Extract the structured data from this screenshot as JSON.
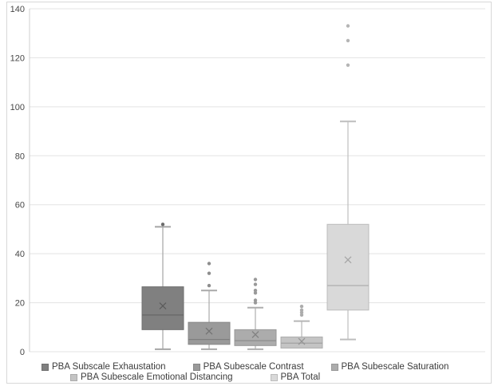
{
  "page": {
    "background": "#FFFFFF",
    "frame_border_color": "#D8D8D8",
    "gridline_color": "#E3E3E3",
    "axis_line_color": "#CFCFCF",
    "tick_label_color": "#474747",
    "legend_text_color": "#3C3C3C"
  },
  "chart_data": {
    "type": "boxplot",
    "title": "",
    "xlabel": "",
    "ylabel": "",
    "ylim": [
      0,
      140
    ],
    "yticks": [
      "0",
      "20",
      "40",
      "60",
      "80",
      "100",
      "120",
      "140"
    ],
    "grid": true,
    "legend_position": "bottom",
    "legend_rows": [
      [
        0,
        1,
        2
      ],
      [
        3,
        4
      ]
    ],
    "series": [
      {
        "name": "PBA Subscale Exhaustation",
        "min": 1,
        "q1": 9,
        "median": 15,
        "q3": 26.5,
        "max": 51,
        "mean": 18.7,
        "outliers": [
          52
        ],
        "fill": "#808080",
        "stroke": "#6F6F6F",
        "median_color": "#696969",
        "mean_color": "#5C5C5C",
        "whisker_color": "#A5A5A5",
        "outlier_color": "#6B6B6B"
      },
      {
        "name": "PBA Subescale Contrast",
        "min": 1,
        "q1": 3,
        "median": 5,
        "q3": 12,
        "max": 25,
        "mean": 8.4,
        "outliers": [
          27,
          32,
          36
        ],
        "fill": "#9A9A9A",
        "stroke": "#868686",
        "median_color": "#7E7E7E",
        "mean_color": "#737373",
        "whisker_color": "#A9A9A9",
        "outlier_color": "#8E8E8E"
      },
      {
        "name": "PBA Subescale Saturation",
        "min": 1,
        "q1": 2.5,
        "median": 4.5,
        "q3": 9,
        "max": 18,
        "mean": 7,
        "outliers": [
          20,
          21,
          24,
          25,
          27.5,
          29.5
        ],
        "fill": "#ACACAC",
        "stroke": "#979797",
        "median_color": "#8F8F8F",
        "mean_color": "#828282",
        "whisker_color": "#AEAEAE",
        "outlier_color": "#999999"
      },
      {
        "name": "PBA Subescale Emotional Distancing",
        "min": 1.5,
        "q1": 1.5,
        "median": 3.5,
        "q3": 6,
        "max": 12.5,
        "mean": 4.2,
        "outliers": [
          15,
          16,
          17,
          18.5
        ],
        "fill": "#C4C4C4",
        "stroke": "#ABABAB",
        "median_color": "#A2A2A2",
        "mean_color": "#959595",
        "whisker_color": "#B6B6B6",
        "outlier_color": "#ACACAC"
      },
      {
        "name": "PBA Total",
        "min": 5,
        "q1": 17,
        "median": 27,
        "q3": 52,
        "max": 94,
        "mean": 37.5,
        "outliers": [
          117,
          127,
          133
        ],
        "fill": "#D9D9D9",
        "stroke": "#BCBCBC",
        "median_color": "#B2B2B2",
        "mean_color": "#A6A6A6",
        "whisker_color": "#BEBEBE",
        "outlier_color": "#B5B5B5"
      }
    ]
  }
}
